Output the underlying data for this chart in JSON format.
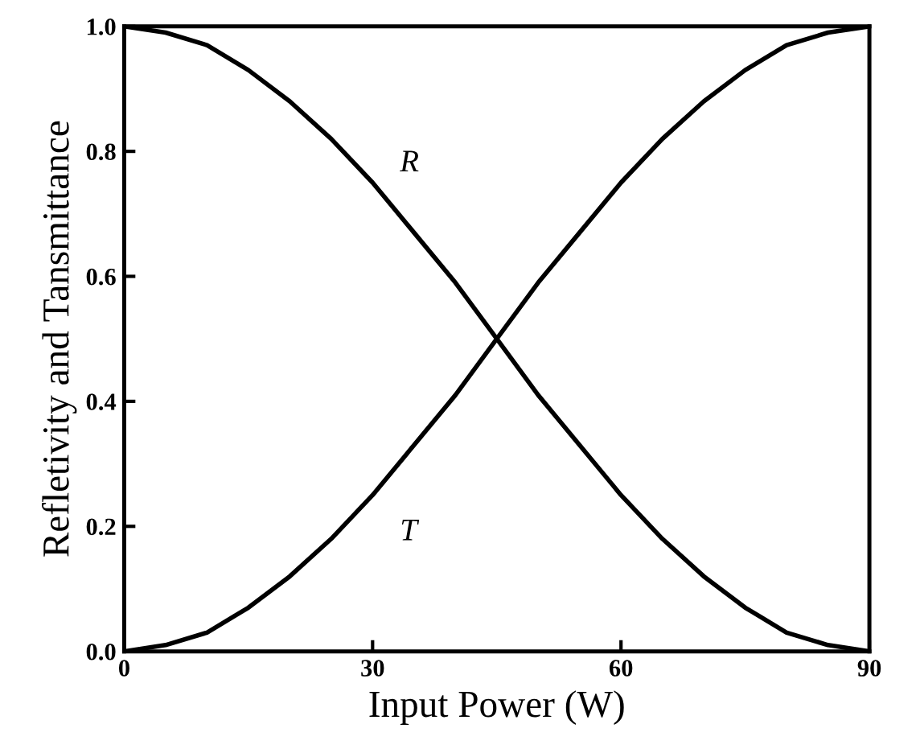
{
  "chart_data": {
    "type": "line",
    "xlabel": "Input Power (W)",
    "ylabel": "Refletivity and Tansmittance",
    "x": [
      0,
      5,
      10,
      15,
      20,
      25,
      30,
      35,
      40,
      45,
      50,
      55,
      60,
      65,
      70,
      75,
      80,
      85,
      90
    ],
    "series": [
      {
        "color": "#000000",
        "values": [
          1.0,
          0.99,
          0.97,
          0.93,
          0.88,
          0.82,
          0.75,
          0.67,
          0.59,
          0.5,
          0.41,
          0.33,
          0.25,
          0.18,
          0.12,
          0.07,
          0.03,
          0.01,
          0.0
        ]
      },
      {
        "color": "#000000",
        "values": [
          0.0,
          0.01,
          0.03,
          0.07,
          0.12,
          0.18,
          0.25,
          0.33,
          0.41,
          0.5,
          0.59,
          0.67,
          0.75,
          0.82,
          0.88,
          0.93,
          0.97,
          0.99,
          1.0
        ]
      }
    ],
    "annotations": [
      "R",
      "T"
    ],
    "xlim": [
      0,
      90
    ],
    "xticks": [
      0,
      30,
      60,
      90
    ],
    "ylim": [
      0,
      1
    ],
    "yticks": [
      {
        "value": 0,
        "label": "0.0"
      },
      {
        "value": 0.2,
        "label": "0.2"
      },
      {
        "value": 0.4,
        "label": "0.4"
      },
      {
        "value": 0.6,
        "label": "0.6"
      },
      {
        "value": 0.8,
        "label": "0.8"
      },
      {
        "value": 1,
        "label": "1.0"
      }
    ],
    "grid": false,
    "legend": false,
    "marker": "none",
    "line_style": "solid"
  }
}
